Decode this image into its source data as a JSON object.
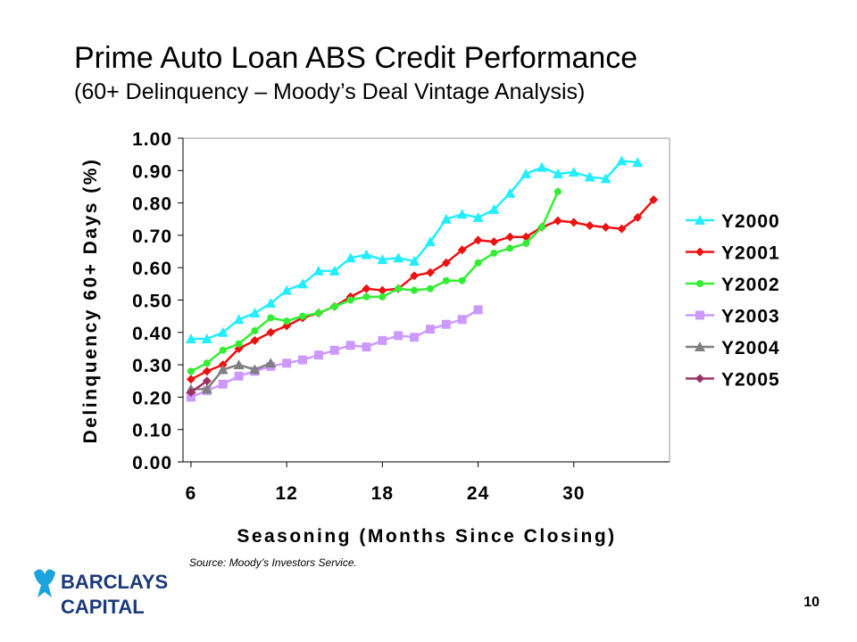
{
  "title": "Prime Auto Loan ABS Credit Performance",
  "subtitle": "(60+ Delinquency – Moody’s Deal Vintage Analysis)",
  "source": "Source: Moody’s Investors Service.",
  "logo": {
    "line1": "BARCLAYS",
    "line2": "CAPITAL"
  },
  "page_number": "10",
  "chart_data": {
    "type": "line",
    "x_label": "Seasoning (Months Since Closing)",
    "y_label": "Delinquency 60+ Days (%)",
    "x": [
      6,
      7,
      8,
      9,
      10,
      11,
      12,
      13,
      14,
      15,
      16,
      17,
      18,
      19,
      20,
      21,
      22,
      23,
      24,
      25,
      26,
      27,
      28,
      29,
      30,
      31,
      32,
      33,
      34,
      35
    ],
    "xlim": [
      5.5,
      36
    ],
    "xticks": [
      6,
      12,
      18,
      24,
      30
    ],
    "ylim": [
      0,
      1
    ],
    "yticks": [
      {
        "value": 0,
        "label": "0.00"
      },
      {
        "value": 0.1,
        "label": "0.10"
      },
      {
        "value": 0.2,
        "label": "0.20"
      },
      {
        "value": 0.3,
        "label": "0.30"
      },
      {
        "value": 0.4,
        "label": "0.40"
      },
      {
        "value": 0.5,
        "label": "0.50"
      },
      {
        "value": 0.6,
        "label": "0.60"
      },
      {
        "value": 0.7,
        "label": "0.70"
      },
      {
        "value": 0.8,
        "label": "0.80"
      },
      {
        "value": 0.9,
        "label": "0.90"
      },
      {
        "value": 1,
        "label": "1.00"
      }
    ],
    "grid": false,
    "legend": "right",
    "series": [
      {
        "name": "Y2000",
        "color": "#22eeff",
        "marker": "triangle",
        "values": [
          0.38,
          0.38,
          0.4,
          0.44,
          0.46,
          0.49,
          0.53,
          0.55,
          0.59,
          0.59,
          0.63,
          0.64,
          0.625,
          0.63,
          0.62,
          0.68,
          0.75,
          0.765,
          0.755,
          0.78,
          0.83,
          0.89,
          0.91,
          0.89,
          0.895,
          0.88,
          0.875,
          0.93,
          0.925,
          null
        ]
      },
      {
        "name": "Y2001",
        "color": "#ee1111",
        "marker": "diamond",
        "values": [
          0.255,
          0.28,
          0.3,
          0.35,
          0.375,
          0.4,
          0.42,
          0.445,
          0.46,
          0.48,
          0.51,
          0.535,
          0.53,
          0.535,
          0.575,
          0.585,
          0.615,
          0.655,
          0.685,
          0.68,
          0.695,
          0.695,
          0.725,
          0.745,
          0.74,
          0.73,
          0.725,
          0.72,
          0.755,
          0.81
        ]
      },
      {
        "name": "Y2002",
        "color": "#33ee33",
        "marker": "circle",
        "values": [
          0.28,
          0.305,
          0.345,
          0.365,
          0.405,
          0.445,
          0.435,
          0.45,
          0.46,
          0.48,
          0.5,
          0.51,
          0.51,
          0.535,
          0.53,
          0.535,
          0.56,
          0.56,
          0.615,
          0.645,
          0.66,
          0.675,
          0.725,
          0.835,
          null,
          null,
          null,
          null,
          null,
          null
        ]
      },
      {
        "name": "Y2003",
        "color": "#cc99ff",
        "marker": "square",
        "values": [
          0.2,
          0.22,
          0.24,
          0.265,
          0.28,
          0.295,
          0.305,
          0.315,
          0.33,
          0.345,
          0.36,
          0.355,
          0.375,
          0.39,
          0.385,
          0.41,
          0.425,
          0.44,
          0.47,
          null,
          null,
          null,
          null,
          null,
          null,
          null,
          null,
          null,
          null,
          null
        ]
      },
      {
        "name": "Y2004",
        "color": "#808080",
        "marker": "triangle",
        "values": [
          0.225,
          0.225,
          0.285,
          0.3,
          0.285,
          0.305,
          null,
          null,
          null,
          null,
          null,
          null,
          null,
          null,
          null,
          null,
          null,
          null,
          null,
          null,
          null,
          null,
          null,
          null,
          null,
          null,
          null,
          null,
          null,
          null
        ]
      },
      {
        "name": "Y2005",
        "color": "#993366",
        "marker": "diamond",
        "values": [
          0.215,
          0.25,
          null,
          null,
          null,
          null,
          null,
          null,
          null,
          null,
          null,
          null,
          null,
          null,
          null,
          null,
          null,
          null,
          null,
          null,
          null,
          null,
          null,
          null,
          null,
          null,
          null,
          null,
          null,
          null
        ]
      }
    ]
  }
}
